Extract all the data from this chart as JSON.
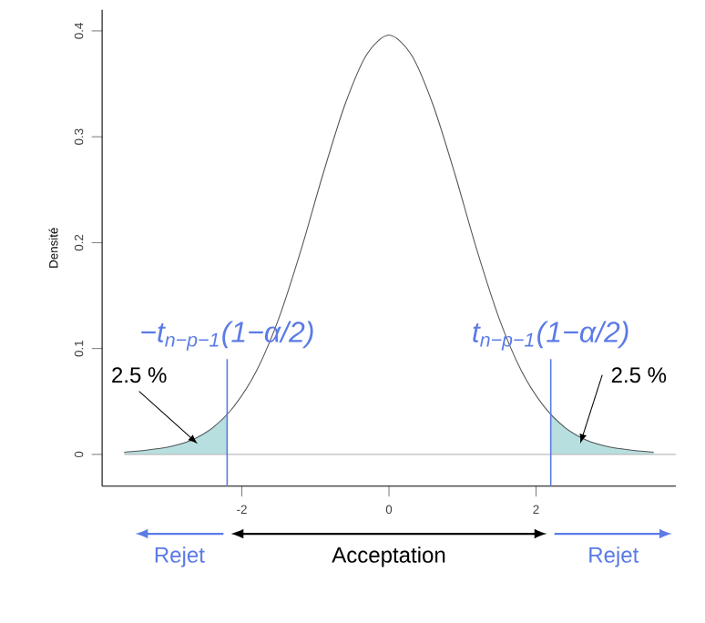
{
  "chart_data": {
    "type": "line",
    "ylabel": "Densité",
    "xlim": [
      -3.9,
      3.9
    ],
    "ylim": [
      -0.03,
      0.42
    ],
    "xticks": [
      -2,
      0,
      2
    ],
    "yticks": [
      0,
      0.1,
      0.2,
      0.3,
      0.4
    ],
    "series": [
      {
        "type": "line",
        "color": "#555555",
        "x": [
          -3.6,
          -3.3,
          -3.0,
          -2.7,
          -2.4,
          -2.1,
          -1.8,
          -1.5,
          -1.2,
          -0.9,
          -0.6,
          -0.3,
          0,
          0.3,
          0.6,
          0.9,
          1.2,
          1.5,
          1.8,
          2.1,
          2.4,
          2.7,
          3.0,
          3.3,
          3.6
        ],
        "values": [
          0.002,
          0.004,
          0.007,
          0.013,
          0.025,
          0.046,
          0.079,
          0.128,
          0.192,
          0.264,
          0.33,
          0.378,
          0.396,
          0.378,
          0.33,
          0.264,
          0.192,
          0.128,
          0.079,
          0.046,
          0.025,
          0.013,
          0.007,
          0.004,
          0.002
        ]
      },
      {
        "type": "area",
        "color": "#b7dfdf",
        "x": [
          -3.6,
          -3.3,
          -3.0,
          -2.7,
          -2.4,
          -2.2
        ],
        "values": [
          0.002,
          0.004,
          0.007,
          0.013,
          0.025,
          0.038
        ]
      },
      {
        "type": "area",
        "color": "#b7dfdf",
        "x": [
          2.2,
          2.4,
          2.7,
          3.0,
          3.3,
          3.6
        ],
        "values": [
          0.038,
          0.025,
          0.013,
          0.007,
          0.004,
          0.002
        ]
      }
    ],
    "ref_lines": [
      {
        "axis": "y",
        "value": 0,
        "color": "#bbbbbb"
      },
      {
        "axis": "x",
        "value": -2.2,
        "label": "−t$_{n−p−1}$(1−α/2)",
        "color": "#5b7be6"
      },
      {
        "axis": "x",
        "value": 2.2,
        "label": "t$_{n−p−1}$(1−α/2)",
        "color": "#5b7be6"
      }
    ],
    "annotations": [
      {
        "text": "2.5 %",
        "x": -2.6,
        "y": 0.01
      },
      {
        "text": "2.5 %",
        "x": 2.6,
        "y": 0.01
      },
      "Rejet",
      "Acceptation",
      "Rejet"
    ]
  }
}
